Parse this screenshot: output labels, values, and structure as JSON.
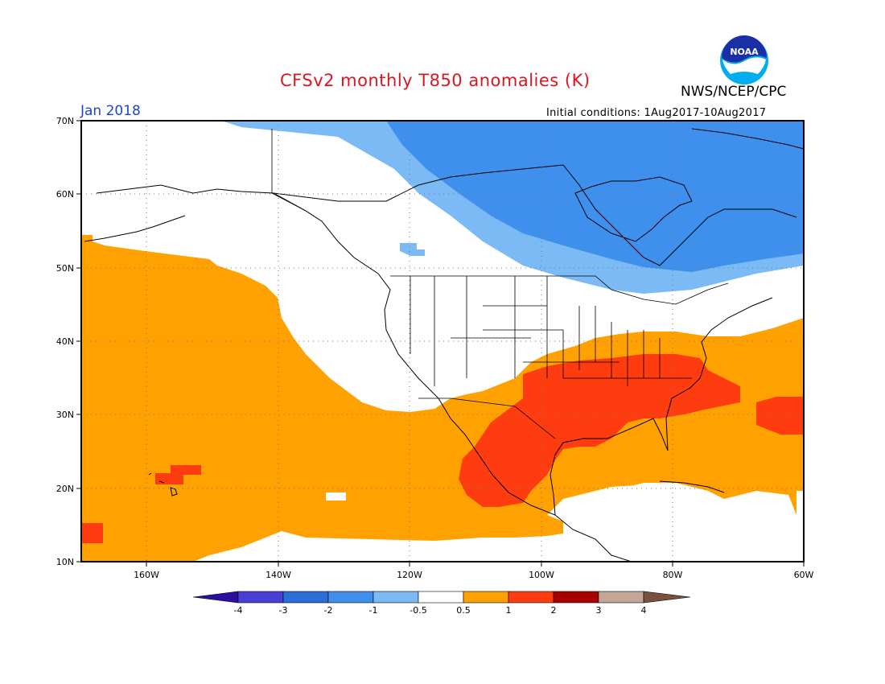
{
  "title": "CFSv2 monthly T850 anomalies (K)",
  "agency": "NWS/NCEP/CPC",
  "logo_text": "NOAA",
  "valid_month": "Jan 2018",
  "initial_conditions": "Initial conditions: 1Aug2017-10Aug2017",
  "lat_labels": [
    "70N",
    "60N",
    "50N",
    "40N",
    "30N",
    "20N",
    "10N"
  ],
  "lon_labels": [
    "160W",
    "140W",
    "120W",
    "100W",
    "80W",
    "60W"
  ],
  "colorbar": {
    "labels": [
      "-4",
      "-3",
      "-2",
      "-1",
      "-0.5",
      "0.5",
      "1",
      "2",
      "3",
      "4"
    ],
    "colors": [
      "#2a0fa0",
      "#4a3fd4",
      "#2a6fd8",
      "#3f8fec",
      "#7cbaf5",
      "#ffffff",
      "#ffa100",
      "#ff3c10",
      "#a80000",
      "#c4a596",
      "#7a5040"
    ]
  },
  "chart_data": {
    "type": "heatmap",
    "title": "CFSv2 monthly T850 anomalies (K)",
    "variable": "850 hPa temperature anomaly",
    "units": "K",
    "valid": "Jan 2018",
    "initial_conditions": "1Aug2017-10Aug2017",
    "lon_range": [
      -170,
      -60
    ],
    "lat_range": [
      10,
      70
    ],
    "contour_levels": [
      -4,
      -3,
      -2,
      -1,
      -0.5,
      0.5,
      1,
      2,
      3,
      4
    ],
    "regions": [
      {
        "anomaly_bin": "-2 to -1",
        "color": "#3f8fec",
        "area": "Canadian Arctic, Hudson Bay, Labrador"
      },
      {
        "anomaly_bin": "-1 to -0.5",
        "color": "#7cbaf5",
        "area": "Northern Canada fringe"
      },
      {
        "anomaly_bin": "0.5 to 1",
        "color": "#ffa100",
        "area": "NE Pacific, Hawaii region, southern US, Gulf, western Atlantic"
      },
      {
        "anomaly_bin": "1 to 2",
        "color": "#ff3c10",
        "area": "Southeastern US, Mexico, Hawaii, far western Atlantic"
      }
    ]
  }
}
